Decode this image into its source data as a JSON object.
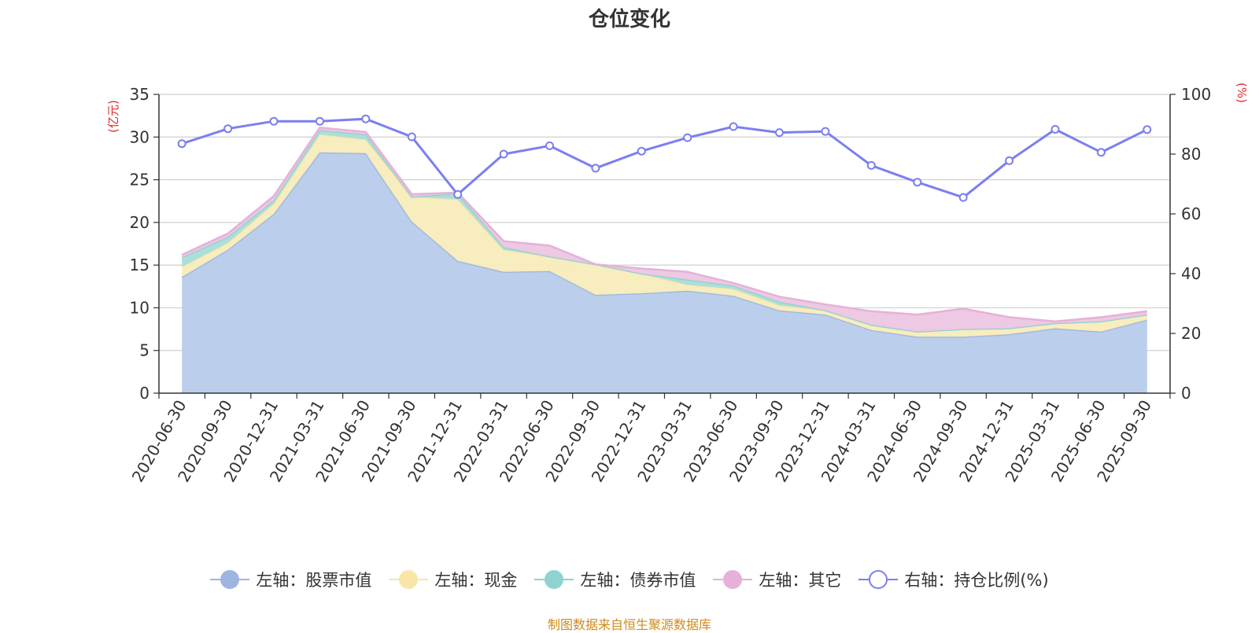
{
  "title": "仓位变化",
  "source_note": "制图数据来自恒生聚源数据库",
  "legend": [
    {
      "label": "左轴：股票市值",
      "color": "#9db5e0",
      "hollow": false
    },
    {
      "label": "左轴：现金",
      "color": "#f8e6a6",
      "hollow": false
    },
    {
      "label": "左轴：债券市值",
      "color": "#8fd3cf",
      "hollow": false
    },
    {
      "label": "左轴：其它",
      "color": "#e5b1d8",
      "hollow": false
    },
    {
      "label": "右轴：持仓比例(%)",
      "color": "#7b7ff0",
      "hollow": true
    }
  ],
  "chart_data": {
    "type": "area",
    "title": "仓位变化",
    "categories": [
      "2020-06-30",
      "2020-09-30",
      "2020-12-31",
      "2021-03-31",
      "2021-06-30",
      "2021-09-30",
      "2021-12-31",
      "2022-03-31",
      "2022-06-30",
      "2022-09-30",
      "2022-12-31",
      "2023-03-31",
      "2023-06-30",
      "2023-09-30",
      "2023-12-31",
      "2024-03-31",
      "2024-06-30",
      "2024-09-30",
      "2024-12-31",
      "2025-03-31",
      "2025-06-30",
      "2025-09-30"
    ],
    "left_axis": {
      "label": "(亿元)",
      "min": 0,
      "max": 35,
      "ticks": [
        0,
        5,
        10,
        15,
        20,
        25,
        30,
        35
      ]
    },
    "right_axis": {
      "label": "(%)",
      "min": 0,
      "max": 100,
      "ticks": [
        0,
        20,
        40,
        60,
        80,
        100
      ]
    },
    "stack_series": [
      {
        "name": "左轴：股票市值",
        "color": "#9db5e0",
        "fill": "#b7cbea",
        "values": [
          13.6,
          16.8,
          21.0,
          28.2,
          28.1,
          20.1,
          15.5,
          14.2,
          14.3,
          11.5,
          11.7,
          12.0,
          11.4,
          9.7,
          9.2,
          7.4,
          6.6,
          6.6,
          6.9,
          7.6,
          7.2,
          8.6
        ]
      },
      {
        "name": "左轴：现金",
        "color": "#f8e6a6",
        "fill": "#f8ecbc",
        "values": [
          1.2,
          0.8,
          1.2,
          2.1,
          1.6,
          2.9,
          7.2,
          2.6,
          1.7,
          3.6,
          2.3,
          0.7,
          0.8,
          0.6,
          0.5,
          0.6,
          0.6,
          0.9,
          0.7,
          0.6,
          1.2,
          0.6
        ]
      },
      {
        "name": "左轴：债券市值",
        "color": "#8fd3cf",
        "fill": "#a8ddda",
        "values": [
          1.1,
          0.7,
          0.4,
          0.5,
          0.6,
          0.0,
          0.7,
          0.3,
          0.0,
          0.0,
          0.0,
          0.6,
          0.4,
          0.4,
          0.0,
          0.0,
          0.0,
          0.0,
          0.0,
          0.0,
          0.0,
          0.0
        ]
      },
      {
        "name": "左轴：其它",
        "color": "#e5b1d8",
        "fill": "#ecc6e2",
        "values": [
          0.3,
          0.4,
          0.5,
          0.3,
          0.3,
          0.3,
          0.1,
          0.7,
          1.3,
          0.0,
          0.6,
          0.9,
          0.3,
          0.6,
          0.7,
          1.6,
          2.0,
          2.4,
          1.3,
          0.2,
          0.5,
          0.4
        ]
      }
    ],
    "line_series": {
      "name": "右轴：持仓比例(%)",
      "color": "#7b7ff0",
      "values": [
        83.5,
        88.5,
        91,
        91,
        91.8,
        85.8,
        66.5,
        80,
        82.8,
        75.3,
        81,
        85.5,
        89.2,
        87.2,
        87.6,
        76.2,
        70.6,
        65.5,
        77.8,
        88.3,
        80.6,
        88.2
      ]
    }
  }
}
